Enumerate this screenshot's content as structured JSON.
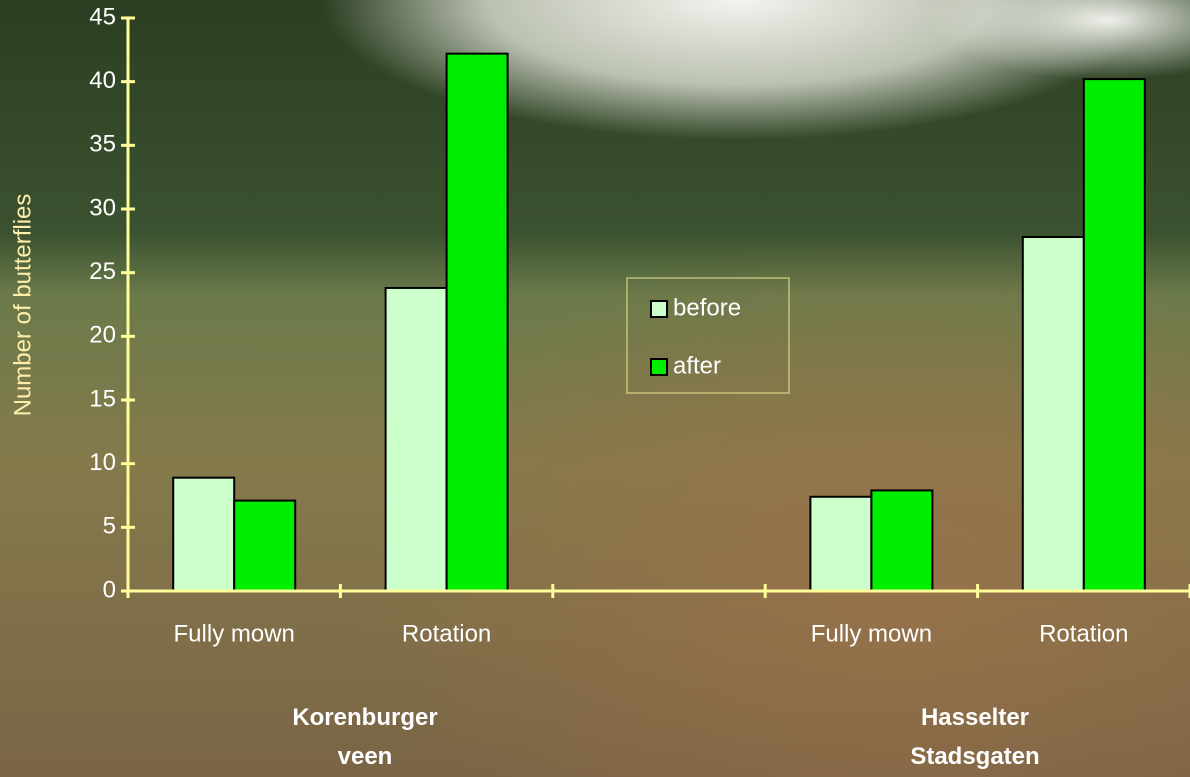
{
  "chart_data": {
    "type": "bar",
    "y_label": "Number of butterflies",
    "categories": [
      "Fully mown",
      "Rotation",
      null,
      "Fully mown",
      "Rotation"
    ],
    "groups": [
      {
        "label": "Korenburger veen"
      },
      {
        "label": "Hasselter Stadsgaten"
      }
    ],
    "series": [
      {
        "name": "before",
        "color": "#ccffcc",
        "values": [
          8.9,
          23.8,
          null,
          7.4,
          27.8
        ]
      },
      {
        "name": "after",
        "color": "#00ee00",
        "values": [
          7.1,
          42.2,
          null,
          7.9,
          40.2
        ]
      }
    ],
    "ylim": [
      0,
      45
    ],
    "yticks": [
      0,
      5,
      10,
      15,
      20,
      25,
      30,
      35,
      40,
      45
    ],
    "axis_color": "#ffff99",
    "label_color": "#ffffff",
    "y_label_color": "#ffeeaa"
  }
}
